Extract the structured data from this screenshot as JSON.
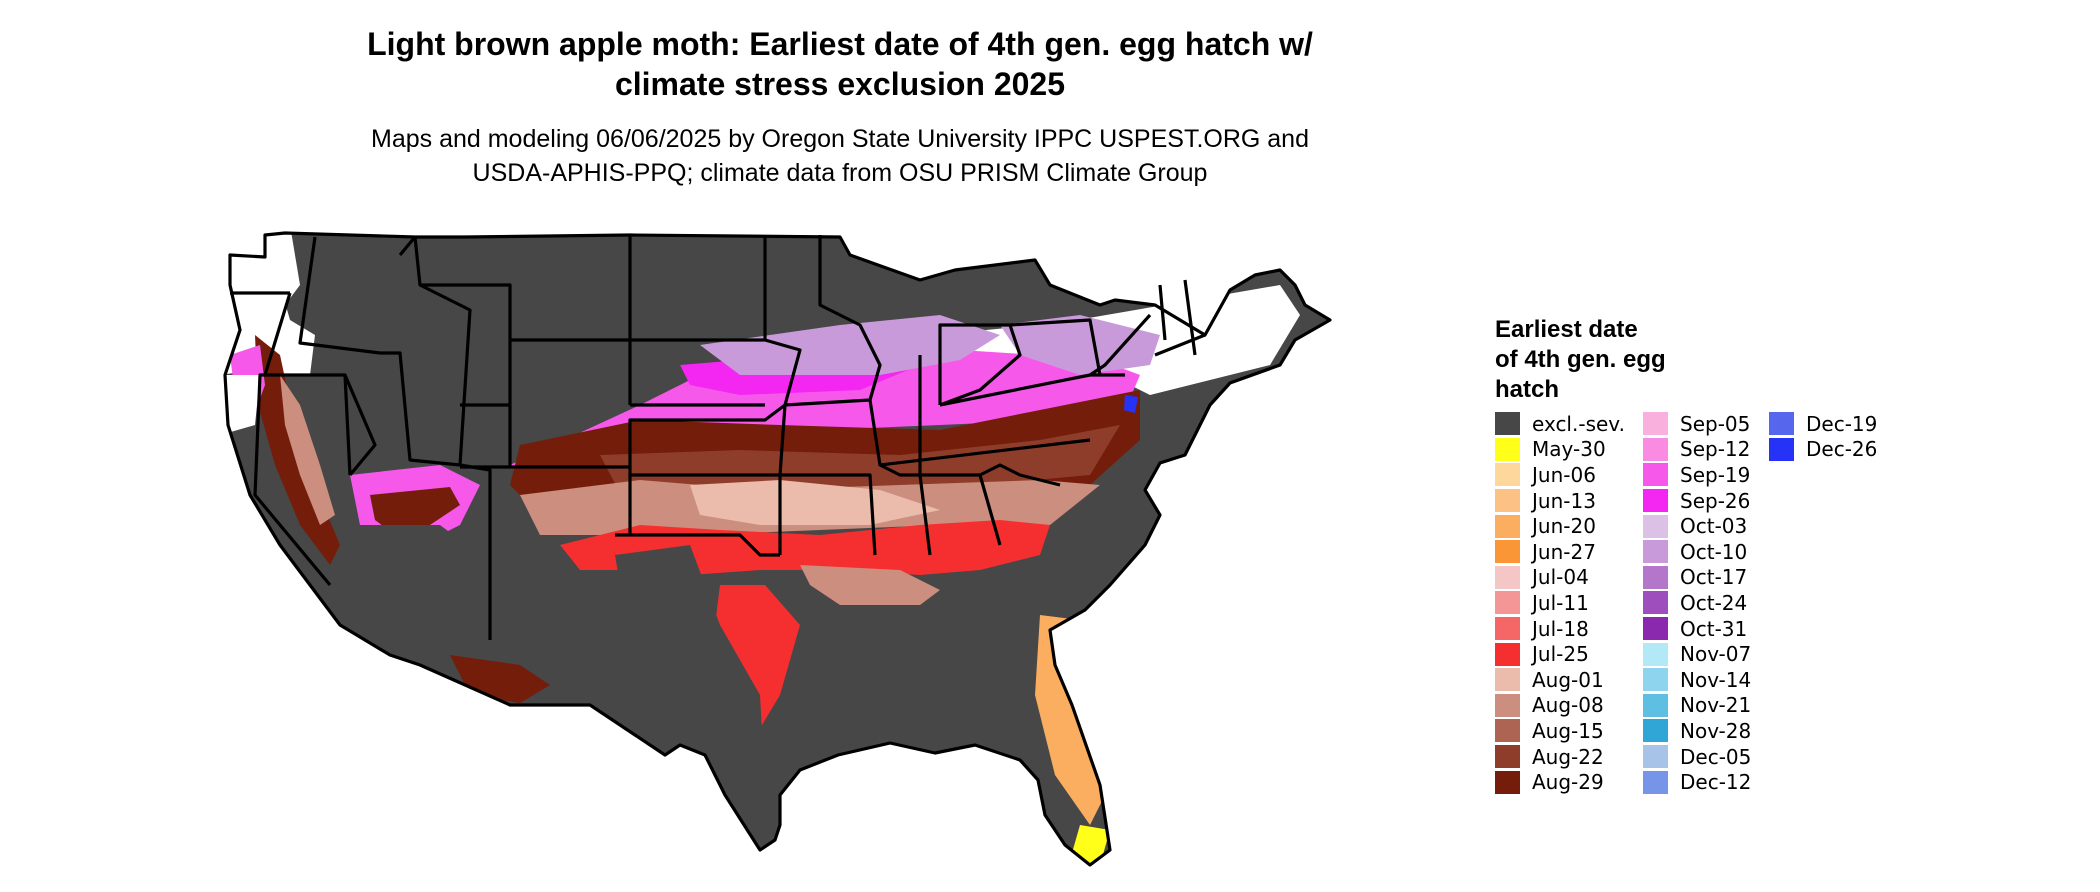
{
  "title_line1": "Light brown apple moth: Earliest date of 4th gen. egg hatch w/",
  "title_line2": "climate stress exclusion 2025",
  "subtitle_line1": "Maps and modeling 06/06/2025 by Oregon State University IPPC USPEST.ORG and",
  "subtitle_line2": "USDA-APHIS-PPQ; climate data from OSU PRISM Climate Group",
  "legend": {
    "title_line1": "Earliest date",
    "title_line2": "of 4th gen. egg",
    "title_line3": "hatch",
    "col1": [
      {
        "label": "excl.-sev.",
        "color": "#474747"
      },
      {
        "label": "May-30",
        "color": "#ffff1a"
      },
      {
        "label": "Jun-06",
        "color": "#fdd79c"
      },
      {
        "label": "Jun-13",
        "color": "#fcc185"
      },
      {
        "label": "Jun-20",
        "color": "#fcae60"
      },
      {
        "label": "Jun-27",
        "color": "#fb9637"
      },
      {
        "label": "Jul-04",
        "color": "#f5c6c6"
      },
      {
        "label": "Jul-11",
        "color": "#f59696"
      },
      {
        "label": "Jul-18",
        "color": "#f56666"
      },
      {
        "label": "Jul-25",
        "color": "#f52f2f"
      },
      {
        "label": "Aug-01",
        "color": "#ebbcac"
      },
      {
        "label": "Aug-08",
        "color": "#cc8e7e"
      },
      {
        "label": "Aug-15",
        "color": "#ad6453"
      },
      {
        "label": "Aug-22",
        "color": "#8e3d2b"
      },
      {
        "label": "Aug-29",
        "color": "#751d0b"
      }
    ],
    "col2": [
      {
        "label": "Sep-05",
        "color": "#fab0dc"
      },
      {
        "label": "Sep-12",
        "color": "#f98be3"
      },
      {
        "label": "Sep-19",
        "color": "#f659ea"
      },
      {
        "label": "Sep-26",
        "color": "#f426f2"
      },
      {
        "label": "Oct-03",
        "color": "#dcc1e6"
      },
      {
        "label": "Oct-10",
        "color": "#c99ad9"
      },
      {
        "label": "Oct-17",
        "color": "#b376cb"
      },
      {
        "label": "Oct-24",
        "color": "#9f4fbd"
      },
      {
        "label": "Oct-31",
        "color": "#8a29ae"
      },
      {
        "label": "Nov-07",
        "color": "#b3e8f7"
      },
      {
        "label": "Nov-14",
        "color": "#8ed4ee"
      },
      {
        "label": "Nov-21",
        "color": "#5fbfe3"
      },
      {
        "label": "Nov-28",
        "color": "#2fa6d6"
      },
      {
        "label": "Dec-05",
        "color": "#a7c3e8"
      },
      {
        "label": "Dec-12",
        "color": "#7695e8"
      }
    ],
    "col3": [
      {
        "label": "Dec-19",
        "color": "#5667ee"
      },
      {
        "label": "Dec-26",
        "color": "#2732f7"
      }
    ]
  },
  "map_colors": {
    "excluded": "#474747",
    "none": "#ffffff",
    "aug_29": "#751d0b",
    "aug_22": "#8e3d2b",
    "aug_08": "#cc8e7e",
    "aug_01": "#ebbcac",
    "jul_25": "#f52f2f",
    "jun_20": "#fcae60",
    "may_30": "#ffff1a",
    "sep_26": "#f426f2",
    "sep_19": "#f659ea",
    "oct_10": "#c99ad9",
    "dec_26": "#2732f7",
    "boundary": "#000000"
  }
}
